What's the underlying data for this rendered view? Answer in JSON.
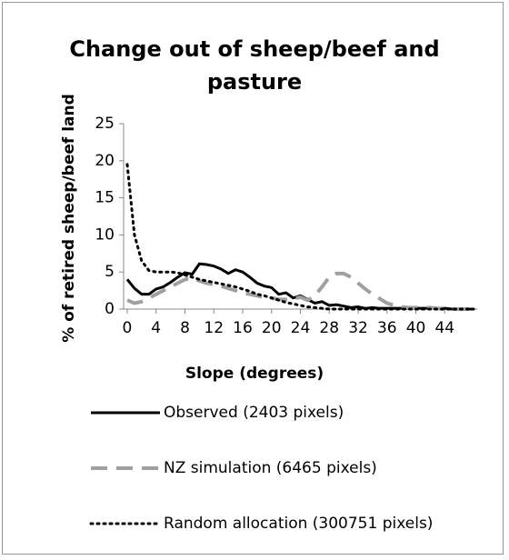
{
  "chart_data": {
    "type": "line",
    "title": "Change out of sheep/beef and pasture",
    "x_label": "Slope (degrees)",
    "y_label": "% of retired sheep/beef land",
    "x": [
      0,
      1,
      2,
      3,
      4,
      5,
      6,
      7,
      8,
      9,
      10,
      11,
      12,
      13,
      14,
      15,
      16,
      17,
      18,
      19,
      20,
      21,
      22,
      23,
      24,
      25,
      26,
      27,
      28,
      29,
      30,
      31,
      32,
      33,
      34,
      35,
      36,
      37,
      38,
      39,
      40,
      41,
      42,
      43,
      44,
      45,
      46,
      47,
      48
    ],
    "series": [
      {
        "name": "Observed (2403 pixels)",
        "color": "#000000",
        "dash": "solid",
        "values": [
          4,
          2.8,
          2,
          2,
          2.7,
          3,
          3.6,
          4.3,
          4.9,
          4.7,
          6.1,
          6,
          5.8,
          5.4,
          4.8,
          5.3,
          5,
          4.3,
          3.5,
          3.1,
          2.9,
          2,
          2.2,
          1.5,
          1.8,
          1.3,
          0.8,
          1,
          0.5,
          0.6,
          0.4,
          0.2,
          0.3,
          0.1,
          0.2,
          0.1,
          0.1,
          0.1,
          0.1,
          0.1,
          0.1,
          0.1,
          0.1,
          0.1,
          0.1,
          0,
          0,
          0,
          0
        ]
      },
      {
        "name": "NZ simulation (6465 pixels)",
        "color": "#a0a0a0",
        "dash": "dashed",
        "values": [
          1.2,
          0.8,
          1,
          1.5,
          2,
          2.5,
          3,
          3.5,
          4,
          4.2,
          3.8,
          3.5,
          3.3,
          3.1,
          2.8,
          2.5,
          2.2,
          2,
          1.8,
          1.6,
          1.5,
          1.3,
          1.3,
          1.4,
          1.6,
          1.2,
          1.8,
          3,
          4.3,
          4.8,
          4.8,
          4.3,
          3.5,
          2.7,
          2,
          1.4,
          0.8,
          0.5,
          0.3,
          0.2,
          0.2,
          0.2,
          0.2,
          0.1,
          0,
          0,
          0,
          0,
          0
        ]
      },
      {
        "name": "Random allocation (300751 pixels)",
        "color": "#000000",
        "dash": "dotted",
        "values": [
          19.5,
          10,
          6.5,
          5.2,
          5,
          5,
          5,
          4.9,
          4.6,
          4.3,
          4,
          3.8,
          3.6,
          3.4,
          3.2,
          3,
          2.7,
          2.4,
          2,
          1.8,
          1.5,
          1.2,
          0.9,
          0.7,
          0.5,
          0.3,
          0.2,
          0.1,
          0,
          0,
          0,
          0,
          0,
          0,
          0,
          0,
          0,
          0,
          0,
          0,
          0,
          0,
          0,
          0,
          0,
          0,
          0,
          0,
          0
        ]
      }
    ],
    "xlim": [
      -0.5,
      48.5
    ],
    "xticks": [
      0,
      4,
      8,
      12,
      16,
      20,
      24,
      28,
      32,
      36,
      40,
      44
    ],
    "ylim": [
      0,
      25
    ],
    "yticks": [
      0,
      5,
      10,
      15,
      20,
      25
    ]
  }
}
